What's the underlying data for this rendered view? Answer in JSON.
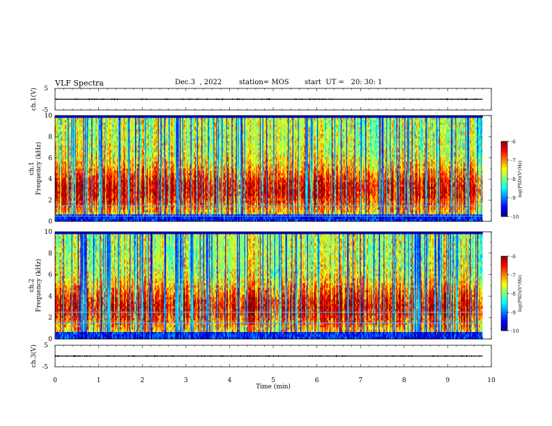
{
  "header": {
    "title": "VLF Spectra",
    "date": "Dec.3  , 2022",
    "station": "station= MOS",
    "start": "start  UT =   20: 30: 1"
  },
  "colors": {
    "jet": [
      "#00007f",
      "#0000ff",
      "#007fff",
      "#00ffff",
      "#7fff7f",
      "#ffff00",
      "#ff7f00",
      "#ff0000",
      "#7f0000"
    ],
    "background": "#ffffff",
    "trace": "#000000",
    "hum_line": "#4ab8ff"
  },
  "chart_data": [
    {
      "type": "line",
      "panel": "ch1-waveform",
      "ylabel": "ch.1(V)",
      "yticks": [
        "5",
        "-5"
      ],
      "ylim": [
        -5,
        5
      ],
      "xlim": [
        0,
        10
      ],
      "series": [
        {
          "x": [
            0,
            9.8
          ],
          "y": [
            0,
            0
          ]
        }
      ]
    },
    {
      "type": "heatmap",
      "panel": "ch1-spectrogram",
      "ylabel": "ch.1\nFrequency (kHz)",
      "yticks": [
        "0",
        "2",
        "4",
        "6",
        "8",
        "10"
      ],
      "ylim": [
        0,
        10
      ],
      "xlim": [
        0,
        10
      ],
      "data_xmax": 9.8,
      "colorbar": {
        "label": "log(PSD)(V²/Hz)",
        "ticks": [
          "-6",
          "-7",
          "-8",
          "-9",
          "-10"
        ],
        "range": [
          -10,
          -6
        ]
      },
      "hum_lines_khz": [
        0.5,
        1.5
      ],
      "enhanced_band": {
        "x": [
          3.9,
          5.8
        ],
        "f": [
          0,
          4.5
        ]
      }
    },
    {
      "type": "heatmap",
      "panel": "ch2-spectrogram",
      "ylabel": "ch.2\nFrequency (kHz)",
      "yticks": [
        "0",
        "2",
        "4",
        "6",
        "8",
        "10"
      ],
      "ylim": [
        0,
        10
      ],
      "xlim": [
        0,
        10
      ],
      "data_xmax": 9.8,
      "colorbar": {
        "label": "log(PSD)(V²/Hz)",
        "ticks": [
          "-6",
          "-7",
          "-8",
          "-9",
          "-10"
        ],
        "range": [
          -10,
          -6
        ]
      },
      "hum_lines_khz": [
        1.5,
        2.5
      ],
      "enhanced_band": {
        "x": [
          3.6,
          5.6
        ],
        "f": [
          0,
          3.5
        ]
      }
    },
    {
      "type": "line",
      "panel": "ch3-waveform",
      "ylabel": "ch.3(V)",
      "yticks": [
        "5",
        "-5"
      ],
      "ylim": [
        -5,
        5
      ],
      "xlim": [
        0,
        10
      ],
      "series": [
        {
          "x": [
            0,
            9.8
          ],
          "y": [
            0,
            0
          ]
        }
      ]
    }
  ],
  "xaxis": {
    "label": "Time  (min)",
    "ticks": [
      "0",
      "1",
      "2",
      "3",
      "4",
      "5",
      "6",
      "7",
      "8",
      "9",
      "10"
    ]
  }
}
